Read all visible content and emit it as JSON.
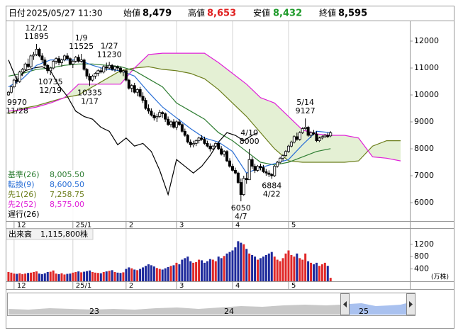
{
  "header": {
    "items": [
      {
        "label": "日付",
        "value": "2025/05/27 11:30"
      },
      {
        "label": "始値",
        "value": "8,479"
      },
      {
        "label": "高値",
        "value": "8,653"
      },
      {
        "label": "安値",
        "value": "8,432"
      },
      {
        "label": "終値",
        "value": "8,595"
      }
    ]
  },
  "chart_data": {
    "type": "candlestick",
    "xlim": [
      -1,
      143.3
    ],
    "xticks": [
      {
        "value": 2,
        "label": "12"
      },
      {
        "value": 23,
        "label": "25/1"
      },
      {
        "value": 42,
        "label": "2"
      },
      {
        "value": 60,
        "label": "3"
      },
      {
        "value": 80,
        "label": "4"
      },
      {
        "value": 100,
        "label": "5"
      }
    ],
    "ylim": [
      5316,
      12737
    ],
    "yticks": [
      6000,
      7000,
      8000,
      9000,
      10000,
      11000,
      12000
    ],
    "grid": true,
    "up_color": "#ffffff",
    "down_color": "#000000",
    "edge_color": "#000000",
    "ohlc": [
      [
        10000,
        10150,
        9970,
        10100
      ],
      [
        10100,
        10350,
        10050,
        10300
      ],
      [
        10300,
        10600,
        10250,
        10550
      ],
      [
        10550,
        10700,
        10400,
        10500
      ],
      [
        10500,
        10900,
        10450,
        10850
      ],
      [
        10850,
        11000,
        10700,
        10950
      ],
      [
        10950,
        11200,
        10900,
        11150
      ],
      [
        11150,
        11350,
        11000,
        11050
      ],
      [
        11050,
        11500,
        11000,
        11450
      ],
      [
        11450,
        11600,
        11300,
        11500
      ],
      [
        11500,
        11895,
        11450,
        11700
      ],
      [
        11700,
        11750,
        11400,
        11450
      ],
      [
        11450,
        11550,
        11200,
        11300
      ],
      [
        11300,
        11400,
        11000,
        11100
      ],
      [
        11100,
        11150,
        10800,
        10900
      ],
      [
        10900,
        11050,
        10735,
        11000
      ],
      [
        11000,
        11300,
        10950,
        11250
      ],
      [
        11250,
        11400,
        11150,
        11350
      ],
      [
        11350,
        11450,
        11100,
        11200
      ],
      [
        11200,
        11350,
        11050,
        11300
      ],
      [
        11300,
        11500,
        11250,
        11450
      ],
      [
        11450,
        11550,
        11300,
        11350
      ],
      [
        11350,
        11400,
        11100,
        11150
      ],
      [
        11150,
        11300,
        11000,
        11250
      ],
      [
        11250,
        11450,
        11200,
        11400
      ],
      [
        11400,
        11500,
        11200,
        11250
      ],
      [
        11250,
        11525,
        11200,
        11300
      ],
      [
        11300,
        11350,
        10900,
        10950
      ],
      [
        10950,
        11000,
        10600,
        10700
      ],
      [
        10700,
        10800,
        10335,
        10550
      ],
      [
        10550,
        10750,
        10500,
        10700
      ],
      [
        10700,
        10850,
        10600,
        10800
      ],
      [
        10800,
        10950,
        10700,
        10900
      ],
      [
        10900,
        11000,
        10800,
        10850
      ],
      [
        10850,
        11100,
        10800,
        11050
      ],
      [
        11050,
        11200,
        10900,
        11000
      ],
      [
        11000,
        11230,
        10950,
        11100
      ],
      [
        11100,
        11150,
        10900,
        10950
      ],
      [
        10950,
        11100,
        10850,
        11050
      ],
      [
        11050,
        11100,
        10900,
        11000
      ],
      [
        11000,
        11050,
        10800,
        10850
      ],
      [
        10850,
        10950,
        10700,
        10900
      ],
      [
        10900,
        10950,
        10500,
        10550
      ],
      [
        10550,
        10600,
        10200,
        10250
      ],
      [
        10250,
        10400,
        10100,
        10350
      ],
      [
        10350,
        10450,
        10050,
        10100
      ],
      [
        10100,
        10250,
        9950,
        10200
      ],
      [
        10200,
        10300,
        9900,
        9950
      ],
      [
        9950,
        10100,
        9700,
        9800
      ],
      [
        9800,
        9900,
        9450,
        9500
      ],
      [
        9500,
        9650,
        9300,
        9400
      ],
      [
        9400,
        9500,
        9200,
        9250
      ],
      [
        9250,
        9350,
        9050,
        9150
      ],
      [
        9150,
        9300,
        9000,
        9200
      ],
      [
        9200,
        9450,
        9150,
        9350
      ],
      [
        9350,
        9400,
        9150,
        9300
      ],
      [
        9300,
        9350,
        9000,
        9100
      ],
      [
        9100,
        9200,
        8850,
        8900
      ],
      [
        8900,
        9050,
        8800,
        9000
      ],
      [
        9000,
        9100,
        8750,
        8800
      ],
      [
        8800,
        9050,
        8700,
        9000
      ],
      [
        9000,
        9100,
        8850,
        8900
      ],
      [
        8900,
        8950,
        8600,
        8650
      ],
      [
        8650,
        8750,
        8450,
        8500
      ],
      [
        8500,
        8550,
        8200,
        8250
      ],
      [
        8250,
        8350,
        8050,
        8150
      ],
      [
        8150,
        8300,
        8050,
        8200
      ],
      [
        8200,
        8350,
        8100,
        8300
      ],
      [
        8300,
        8450,
        8200,
        8400
      ],
      [
        8400,
        8500,
        8300,
        8350
      ],
      [
        8350,
        8450,
        8150,
        8200
      ],
      [
        8200,
        8300,
        8050,
        8100
      ],
      [
        8100,
        8200,
        7900,
        8000
      ],
      [
        8000,
        8150,
        7950,
        8100
      ],
      [
        8100,
        8250,
        8050,
        8200
      ],
      [
        8200,
        8250,
        7950,
        8000
      ],
      [
        8000,
        8100,
        7750,
        7800
      ],
      [
        7800,
        7950,
        7700,
        7900
      ],
      [
        7900,
        7950,
        7500,
        7550
      ],
      [
        7550,
        7650,
        7300,
        7350
      ],
      [
        7350,
        7450,
        7150,
        7200
      ],
      [
        7200,
        7300,
        7050,
        7100
      ],
      [
        7100,
        7150,
        6700,
        6750
      ],
      [
        6750,
        6900,
        6050,
        6300
      ],
      [
        6300,
        7000,
        6250,
        6900
      ],
      [
        6900,
        7100,
        6700,
        6850
      ],
      [
        6850,
        8000,
        6850,
        7600
      ],
      [
        7600,
        7700,
        7250,
        7350
      ],
      [
        7350,
        7450,
        7100,
        7200
      ],
      [
        7200,
        7400,
        7150,
        7350
      ],
      [
        7350,
        7450,
        7200,
        7300
      ],
      [
        7300,
        7400,
        7100,
        7150
      ],
      [
        7150,
        7250,
        7000,
        7100
      ],
      [
        7100,
        7200,
        6950,
        7050
      ],
      [
        7050,
        7100,
        6884,
        7000
      ],
      [
        7000,
        7400,
        6950,
        7350
      ],
      [
        7350,
        7550,
        7300,
        7500
      ],
      [
        7500,
        7700,
        7450,
        7650
      ],
      [
        7650,
        7800,
        7550,
        7750
      ],
      [
        7750,
        7950,
        7700,
        7900
      ],
      [
        7900,
        8150,
        7850,
        8100
      ],
      [
        8100,
        8300,
        8050,
        8250
      ],
      [
        8250,
        8500,
        8200,
        8450
      ],
      [
        8450,
        8600,
        8300,
        8350
      ],
      [
        8350,
        8650,
        8300,
        8600
      ],
      [
        8600,
        8800,
        8550,
        8750
      ],
      [
        8750,
        9127,
        8700,
        8800
      ],
      [
        8800,
        8850,
        8450,
        8500
      ],
      [
        8500,
        8650,
        8400,
        8600
      ],
      [
        8600,
        8700,
        8500,
        8550
      ],
      [
        8550,
        8650,
        8250,
        8300
      ],
      [
        8300,
        8450,
        8250,
        8400
      ],
      [
        8400,
        8500,
        8350,
        8450
      ],
      [
        8450,
        8550,
        8400,
        8500
      ],
      [
        8500,
        8600,
        8400,
        8450
      ],
      [
        8479,
        8653,
        8432,
        8595
      ]
    ],
    "annotations": [
      {
        "date": "11/28",
        "value": 9970,
        "kind": "low"
      },
      {
        "date": "12/12",
        "value": 11895,
        "kind": "high"
      },
      {
        "date": "12/19",
        "value": 10735,
        "kind": "low"
      },
      {
        "date": "1/9",
        "value": 11525,
        "kind": "high"
      },
      {
        "date": "1/17",
        "value": 10335,
        "kind": "low"
      },
      {
        "date": "1/27",
        "value": 11230,
        "kind": "high"
      },
      {
        "date": "4/7",
        "value": 6050,
        "kind": "low"
      },
      {
        "date": "4/10",
        "value": 8000,
        "kind": "high"
      },
      {
        "date": "4/22",
        "value": 6884,
        "kind": "low"
      },
      {
        "date": "5/14",
        "value": 9127,
        "kind": "high"
      }
    ],
    "cloud_color": "#e4f0d4",
    "lines": [
      {
        "name": "基準(26)",
        "latest": "8,005.50",
        "color": "#2e7d32",
        "x": [
          0,
          5,
          10,
          15,
          20,
          25,
          30,
          35,
          40,
          45,
          50,
          55,
          60,
          65,
          70,
          75,
          80,
          85,
          90,
          95,
          100,
          105,
          110,
          115
        ],
        "values": [
          10700,
          10800,
          10950,
          11000,
          11100,
          11150,
          11150,
          11100,
          11050,
          10900,
          10600,
          10300,
          9700,
          9400,
          9100,
          8600,
          8300,
          7900,
          7500,
          7400,
          7500,
          7700,
          7900,
          8005.5
        ]
      },
      {
        "name": "転換(9)",
        "latest": "8,600.50",
        "color": "#2a6fd6",
        "x": [
          0,
          5,
          10,
          15,
          20,
          25,
          30,
          35,
          40,
          45,
          50,
          55,
          60,
          65,
          70,
          75,
          80,
          85,
          90,
          95,
          100,
          105,
          110,
          115
        ],
        "values": [
          10300,
          10600,
          11100,
          11300,
          11300,
          11300,
          11100,
          10950,
          10900,
          10700,
          10100,
          9550,
          9150,
          8750,
          8400,
          8250,
          7900,
          7100,
          7300,
          7450,
          7600,
          8150,
          8650,
          8600.5
        ]
      },
      {
        "name": "先1(26)",
        "latest": "7,258.75",
        "color": "#6b7d1a",
        "cloud": true,
        "x": [
          0,
          5,
          10,
          15,
          20,
          25,
          30,
          35,
          40,
          45,
          50,
          55,
          60,
          65,
          70,
          75,
          80,
          85,
          90,
          95,
          100,
          105,
          110,
          115,
          120,
          125,
          130,
          135,
          140
        ],
        "values": [
          9300,
          9500,
          9600,
          9750,
          9900,
          10000,
          10300,
          10600,
          10900,
          11000,
          11050,
          10950,
          10900,
          10800,
          10600,
          10200,
          9700,
          9200,
          8600,
          8000,
          7550,
          7500,
          7500,
          7500,
          7500,
          7550,
          8100,
          8300,
          8300
        ]
      },
      {
        "name": "先2(52)",
        "latest": "8,575.00",
        "color": "#e020d8",
        "cloud": true,
        "x": [
          0,
          5,
          10,
          15,
          20,
          25,
          30,
          35,
          40,
          45,
          50,
          55,
          60,
          65,
          70,
          75,
          80,
          85,
          90,
          95,
          100,
          105,
          110,
          115,
          120,
          125,
          130,
          135,
          140
        ],
        "values": [
          9400,
          9450,
          9550,
          9700,
          9900,
          10400,
          10400,
          10400,
          10400,
          11000,
          11500,
          11550,
          11550,
          11550,
          11550,
          11200,
          10800,
          10400,
          9900,
          9700,
          9200,
          8700,
          8550,
          8500,
          8500,
          8400,
          7700,
          7650,
          7550
        ]
      },
      {
        "name": "遅行(26)",
        "color": "#000000",
        "x": [
          0,
          3,
          6,
          9,
          12,
          15,
          18,
          21,
          24,
          27,
          30,
          33,
          36,
          39,
          42,
          45,
          48,
          51,
          54,
          57,
          60,
          63,
          66,
          69,
          72,
          75,
          78,
          81,
          84,
          87,
          89
        ],
        "values": [
          11300,
          10550,
          10900,
          11000,
          11050,
          10900,
          10350,
          9950,
          9400,
          9200,
          9100,
          8800,
          8650,
          8150,
          8400,
          8100,
          8200,
          7900,
          7200,
          6300,
          7600,
          7350,
          7100,
          7350,
          7750,
          8250,
          8600,
          8500,
          8300,
          8500,
          8595
        ]
      }
    ],
    "volume": {
      "title": "出来高",
      "latest": "1,115,800株",
      "unit": "(万株)",
      "ylim": [
        0,
        1700
      ],
      "yticks": [
        400,
        800,
        1200
      ],
      "up_color": "#e02828",
      "down_color": "#1e2a9c",
      "values": [
        300,
        280,
        250,
        240,
        260,
        230,
        250,
        270,
        280,
        300,
        320,
        250,
        230,
        260,
        300,
        310,
        350,
        250,
        230,
        260,
        220,
        240,
        250,
        280,
        300,
        320,
        290,
        310,
        330,
        350,
        300,
        280,
        270,
        260,
        300,
        320,
        340,
        360,
        300,
        280,
        270,
        290,
        400,
        450,
        420,
        380,
        360,
        400,
        450,
        500,
        550,
        520,
        480,
        430,
        400,
        380,
        420,
        460,
        500,
        520,
        600,
        550,
        700,
        750,
        800,
        650,
        600,
        620,
        700,
        680,
        600,
        650,
        720,
        700,
        650,
        800,
        750,
        820,
        900,
        950,
        1000,
        1100,
        1300,
        1250,
        1200,
        1050,
        900,
        850,
        800,
        700,
        750,
        800,
        850,
        900,
        950,
        800,
        700,
        650,
        750,
        900,
        1000,
        850,
        800,
        900,
        750,
        700,
        900,
        650,
        600,
        550,
        600,
        500,
        550,
        600,
        500,
        111.58
      ]
    }
  },
  "navigator": {
    "labels": [
      "23",
      "24",
      "25"
    ]
  }
}
